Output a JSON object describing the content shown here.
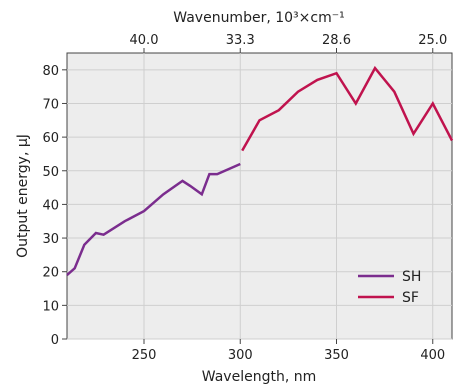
{
  "chart_data": {
    "type": "line",
    "xlabel": "Wavelength, nm",
    "ylabel": "Output energy, μJ",
    "top_xlabel": "Wavenumber, 10³×cm⁻¹",
    "xlim": [
      210,
      410
    ],
    "ylim": [
      0,
      85
    ],
    "xticks": [
      250,
      300,
      350,
      400
    ],
    "yticks": [
      0,
      10,
      20,
      30,
      40,
      50,
      60,
      70,
      80
    ],
    "top_ticks": [
      {
        "label": "40.0",
        "wavelength": 250
      },
      {
        "label": "33.3",
        "wavelength": 300
      },
      {
        "label": "28.6",
        "wavelength": 350
      },
      {
        "label": "25.0",
        "wavelength": 400
      }
    ],
    "grid": true,
    "legend_position": "bottom-right",
    "series": [
      {
        "name": "SH",
        "color": "#7b2d8e",
        "x": [
          210,
          214,
          219,
          225,
          229,
          240,
          250,
          260,
          270,
          274,
          280,
          284,
          288,
          300
        ],
        "y": [
          19,
          21,
          28,
          31.5,
          31,
          35,
          38,
          43,
          47,
          45.5,
          43,
          49,
          49,
          52
        ]
      },
      {
        "name": "SF",
        "color": "#c0134e",
        "x": [
          301,
          310,
          320,
          330,
          340,
          350,
          360,
          370,
          380,
          390,
          400,
          410
        ],
        "y": [
          56,
          65,
          68,
          73.5,
          77,
          79,
          70,
          80.5,
          73.5,
          61,
          70,
          59
        ]
      }
    ]
  }
}
